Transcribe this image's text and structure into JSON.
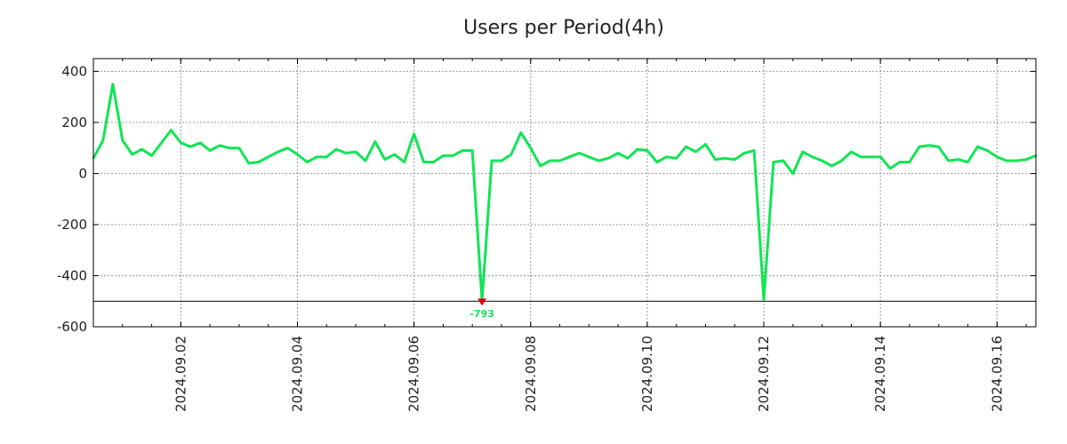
{
  "chart_data": {
    "type": "line",
    "title": "Users per Period(4h)",
    "xlabel": "",
    "ylabel": "",
    "x_start": "2024-08-31 12:00",
    "x_step_hours": 4,
    "x_tick_labels": [
      "2024.09.02",
      "2024.09.04",
      "2024.09.06",
      "2024.09.08",
      "2024.09.10",
      "2024.09.12",
      "2024.09.14",
      "2024.09.16"
    ],
    "y_ticks": [
      400,
      200,
      0,
      -200,
      -400,
      -600
    ],
    "y_tick_labels": [
      "400",
      "200",
      "0",
      "-200",
      "-400",
      "-600"
    ],
    "ylim": [
      -600,
      450
    ],
    "clip_min": -500,
    "grid": true,
    "series": [
      {
        "name": "Users",
        "color": "#11e555",
        "values": [
          60,
          130,
          350,
          130,
          75,
          95,
          70,
          120,
          170,
          120,
          105,
          120,
          90,
          110,
          100,
          100,
          40,
          45,
          65,
          85,
          100,
          75,
          45,
          65,
          65,
          95,
          80,
          85,
          50,
          125,
          55,
          75,
          45,
          155,
          45,
          45,
          70,
          70,
          90,
          90,
          -793,
          50,
          50,
          75,
          160,
          100,
          30,
          50,
          50,
          65,
          80,
          65,
          50,
          60,
          80,
          60,
          95,
          90,
          45,
          65,
          60,
          105,
          85,
          115,
          55,
          60,
          55,
          80,
          90,
          -495,
          45,
          50,
          0,
          85,
          65,
          50,
          30,
          50,
          85,
          65,
          65,
          65,
          20,
          45,
          45,
          105,
          110,
          105,
          50,
          55,
          45,
          105,
          90,
          65,
          50,
          50,
          55,
          70
        ]
      }
    ],
    "annotations": [
      {
        "text": "-793",
        "marker_color": "#dd0000"
      }
    ]
  }
}
